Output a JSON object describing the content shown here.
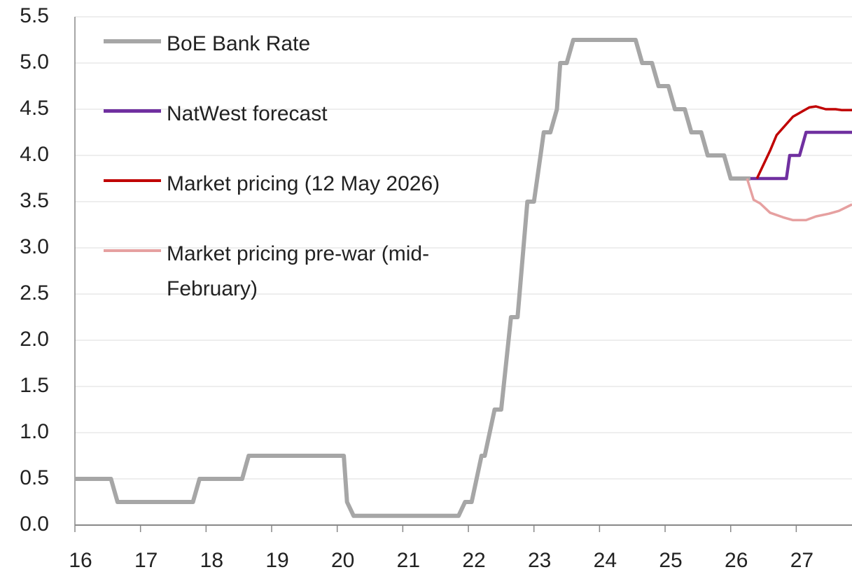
{
  "chart_data": {
    "type": "line",
    "xlim": [
      16,
      27.85
    ],
    "xticks": [
      16,
      17,
      18,
      19,
      20,
      21,
      22,
      23,
      24,
      25,
      26,
      27
    ],
    "ylim": [
      0,
      5.5
    ],
    "yticks": [
      {
        "value": 0,
        "label": "0.0"
      },
      0.5,
      {
        "value": 1,
        "label": "1.0"
      },
      1.5,
      {
        "value": 2,
        "label": "2.0"
      },
      2.5,
      {
        "value": 3,
        "label": "3.0"
      },
      3.5,
      {
        "value": 4,
        "label": "4.0"
      },
      4.5,
      {
        "value": 5,
        "label": "5.0"
      },
      5.5
    ],
    "grid": true,
    "legend": "upper left",
    "series": [
      {
        "name": "BoE Bank Rate",
        "color": "#a6a6a6",
        "x": [
          16,
          16.55,
          16.65,
          17.8,
          17.9,
          18.55,
          18.65,
          20.1,
          20.15,
          20.25,
          21.85,
          21.95,
          22.05,
          22.2,
          22.25,
          22.4,
          22.5,
          22.65,
          22.75,
          22.9,
          23.0,
          23.1,
          23.15,
          23.25,
          23.35,
          23.4,
          23.5,
          23.6,
          24.55,
          24.65,
          24.8,
          24.9,
          25.05,
          25.15,
          25.3,
          25.4,
          25.55,
          25.65,
          25.9,
          26.0,
          26.3
        ],
        "values": [
          0.5,
          0.5,
          0.25,
          0.25,
          0.5,
          0.5,
          0.75,
          0.75,
          0.25,
          0.1,
          0.1,
          0.25,
          0.25,
          0.75,
          0.75,
          1.25,
          1.25,
          2.25,
          2.25,
          3.5,
          3.5,
          4.0,
          4.25,
          4.25,
          4.5,
          5.0,
          5.0,
          5.25,
          5.25,
          5.0,
          5.0,
          4.75,
          4.75,
          4.5,
          4.5,
          4.25,
          4.25,
          4.0,
          4.0,
          3.75,
          3.75
        ]
      },
      {
        "name": "NatWest forecast",
        "color": "#7030a0",
        "x": [
          26.3,
          26.85,
          26.9,
          27.05,
          27.15,
          27.85
        ],
        "values": [
          3.75,
          3.75,
          4.0,
          4.0,
          4.25,
          4.25
        ]
      },
      {
        "name": "Market pricing (12 May 2026)",
        "color": "#c00000",
        "x": [
          26.4,
          26.6,
          26.7,
          26.95,
          27.2,
          27.3,
          27.45,
          27.6,
          27.7,
          27.85
        ],
        "values": [
          3.75,
          4.05,
          4.22,
          4.42,
          4.52,
          4.53,
          4.5,
          4.5,
          4.49,
          4.49
        ]
      },
      {
        "name": "Market pricing pre-war (mid-February)",
        "color": "#e6a0a0",
        "x": [
          26.25,
          26.35,
          26.45,
          26.6,
          26.8,
          26.95,
          27.15,
          27.3,
          27.5,
          27.65,
          27.85
        ],
        "values": [
          3.75,
          3.52,
          3.48,
          3.38,
          3.33,
          3.3,
          3.3,
          3.34,
          3.37,
          3.4,
          3.47
        ]
      }
    ]
  }
}
